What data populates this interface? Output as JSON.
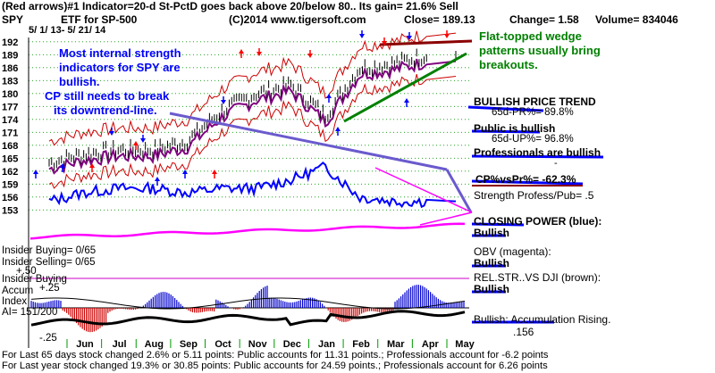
{
  "header": {
    "line1": "(Red arrows)#1 Indicator=20-d St-PctD goes back above 20/below 80.. Its gain= 21.6% Sell",
    "ticker": "SPY",
    "desc": "ETF for SP-500",
    "copyright": "(C)2014 www.tigersoft.com",
    "close": "Close=  189.13",
    "change": "Change= 1.58",
    "volume": "Volume= 834046",
    "dates": "5/ 1/ 13-  5/ 21/ 14"
  },
  "annotations": {
    "blue_text": [
      "Most internal strength",
      "indicators for SPY are",
      "bullish."
    ],
    "cp_text": [
      "CP still needs to break",
      "its downtrend-line."
    ],
    "green_text": [
      "Flat-topped wedge",
      "patterns usually bring",
      "breakouts."
    ]
  },
  "right_labels": {
    "bullish_trend": "BULLISH PRICE TREND",
    "pr_pct": "65d-PR%= 89.8%",
    "public": "Public is bullish",
    "up_pct": "65d-UP%= 96.8%",
    "professionals": "Professionals are bullish",
    "dash": "-",
    "cp_vs_pr": "CP%vsPr%= -62.3%",
    "strength": "Strength Profess/Pub= .5",
    "closing_power": "CLOSING POWER (blue):",
    "closing_power_state": "Bullish",
    "obv": "OBV (magenta):",
    "obv_state": "Bullish",
    "rel_str": "REL.STR..VS DJI (brown):",
    "rel_str_state": "Bullish",
    "accum": "Bullish: Accumulation Rising.",
    "accum_val": ".156"
  },
  "left_labels": {
    "insider_buying": "Insider Buying= 0/65",
    "insider_selling": "Insider Selling= 0/65",
    "plus50": "+.50",
    "insider_buying2": "Insider Buying",
    "accum_index": "Accum",
    "plus25": "+.25",
    "index": "Index",
    "ai": "AI= 151/200",
    "minus25": "-.25"
  },
  "footer": {
    "line1": "For Last 65 days stock changed  2.6% or  5.11 points:  Public accounts for  11.31 points.;  Professionals account for -6.2 points",
    "line2": "For Last year stock changed  19.3% or  30.85 points:  Public accounts for  24.59 points.;  Professionals account for  6.26 points"
  },
  "colors": {
    "price": "#000000",
    "bands": "#cc0000",
    "ma": "#800080",
    "closing_power": "#0000ff",
    "obv": "#ff00ff",
    "trendline_green": "#008000",
    "trendline_brown": "#8b0000",
    "cp_downtrend": "#6a5acd",
    "accum_pos": "#0000cc",
    "accum_neg": "#cc0000"
  },
  "chart_data": {
    "type": "line",
    "title": "(Red arrows)#1 Indicator=20-d St-PctD goes back above 20/below 80.. Its gain= 21.6% Sell",
    "y_ticks": [
      192,
      189,
      186,
      183,
      180,
      177,
      174,
      171,
      168,
      165,
      162,
      159,
      156,
      153
    ],
    "ylim": [
      151,
      193
    ],
    "x_ticks": [
      "Jun",
      "Jul",
      "Aug",
      "Sep",
      "Oct",
      "Nov",
      "Dec",
      "Jan",
      "Feb",
      "Mar",
      "Apr",
      "May"
    ],
    "series": [
      {
        "name": "SPY",
        "x": [
          "Jun",
          "Jul",
          "Aug",
          "Sep",
          "Oct",
          "Nov",
          "Dec",
          "Jan",
          "Feb",
          "Mar",
          "Apr",
          "May"
        ],
        "values": [
          164,
          166,
          167,
          167,
          169,
          176,
          180,
          182,
          175,
          186,
          187,
          189
        ]
      },
      {
        "name": "CLOSING POWER (blue)",
        "x": [
          "Jun",
          "Jul",
          "Aug",
          "Sep",
          "Oct",
          "Nov",
          "Dec",
          "Jan",
          "Feb",
          "Mar",
          "Apr",
          "May"
        ],
        "values": [
          155,
          157,
          158,
          158,
          157,
          158,
          158,
          160,
          163,
          156,
          155,
          155
        ]
      }
    ]
  }
}
